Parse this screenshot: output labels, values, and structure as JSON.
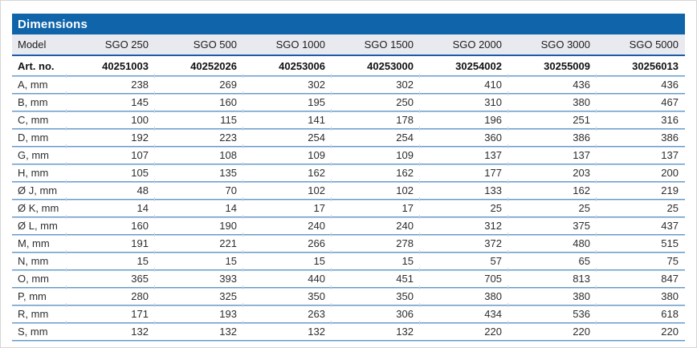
{
  "table": {
    "title": "Dimensions",
    "columns": [
      "Model",
      "SGO 250",
      "SGO 500",
      "SGO 1000",
      "SGO 1500",
      "SGO 2000",
      "SGO 3000",
      "SGO 5000"
    ],
    "art_no_row": {
      "label": "Art. no.",
      "values": [
        "40251003",
        "40252026",
        "40253006",
        "40253000",
        "30254002",
        "30255009",
        "30256013"
      ]
    },
    "dimension_rows": [
      {
        "label": "A, mm",
        "values": [
          "238",
          "269",
          "302",
          "302",
          "410",
          "436",
          "436"
        ]
      },
      {
        "label": "B, mm",
        "values": [
          "145",
          "160",
          "195",
          "250",
          "310",
          "380",
          "467"
        ]
      },
      {
        "label": "C, mm",
        "values": [
          "100",
          "115",
          "141",
          "178",
          "196",
          "251",
          "316"
        ]
      },
      {
        "label": "D, mm",
        "values": [
          "192",
          "223",
          "254",
          "254",
          "360",
          "386",
          "386"
        ]
      },
      {
        "label": "G, mm",
        "values": [
          "107",
          "108",
          "109",
          "109",
          "137",
          "137",
          "137"
        ]
      },
      {
        "label": "H, mm",
        "values": [
          "105",
          "135",
          "162",
          "162",
          "177",
          "203",
          "200"
        ]
      },
      {
        "label": "Ø J, mm",
        "values": [
          "48",
          "70",
          "102",
          "102",
          "133",
          "162",
          "219"
        ]
      },
      {
        "label": "Ø K, mm",
        "values": [
          "14",
          "14",
          "17",
          "17",
          "25",
          "25",
          "25"
        ]
      },
      {
        "label": "Ø L, mm",
        "values": [
          "160",
          "190",
          "240",
          "240",
          "312",
          "375",
          "437"
        ]
      },
      {
        "label": "M, mm",
        "values": [
          "191",
          "221",
          "266",
          "278",
          "372",
          "480",
          "515"
        ]
      },
      {
        "label": "N, mm",
        "values": [
          "15",
          "15",
          "15",
          "15",
          "57",
          "65",
          "75"
        ]
      },
      {
        "label": "O, mm",
        "values": [
          "365",
          "393",
          "440",
          "451",
          "705",
          "813",
          "847"
        ]
      },
      {
        "label": "P, mm",
        "values": [
          "280",
          "325",
          "350",
          "350",
          "380",
          "380",
          "380"
        ]
      },
      {
        "label": "R, mm",
        "values": [
          "171",
          "193",
          "263",
          "306",
          "434",
          "536",
          "618"
        ]
      },
      {
        "label": "S, mm",
        "values": [
          "132",
          "132",
          "132",
          "132",
          "220",
          "220",
          "220"
        ]
      }
    ],
    "colors": {
      "title_bar_bg": "#0f64aa",
      "title_text": "#ffffff",
      "header_row_bg": "#e9eaef",
      "header_rule": "#1d5ba8",
      "row_rule_dark": "#6598c6",
      "row_rule_light": "#b6d0e7",
      "body_text": "#2d2d2d"
    }
  }
}
